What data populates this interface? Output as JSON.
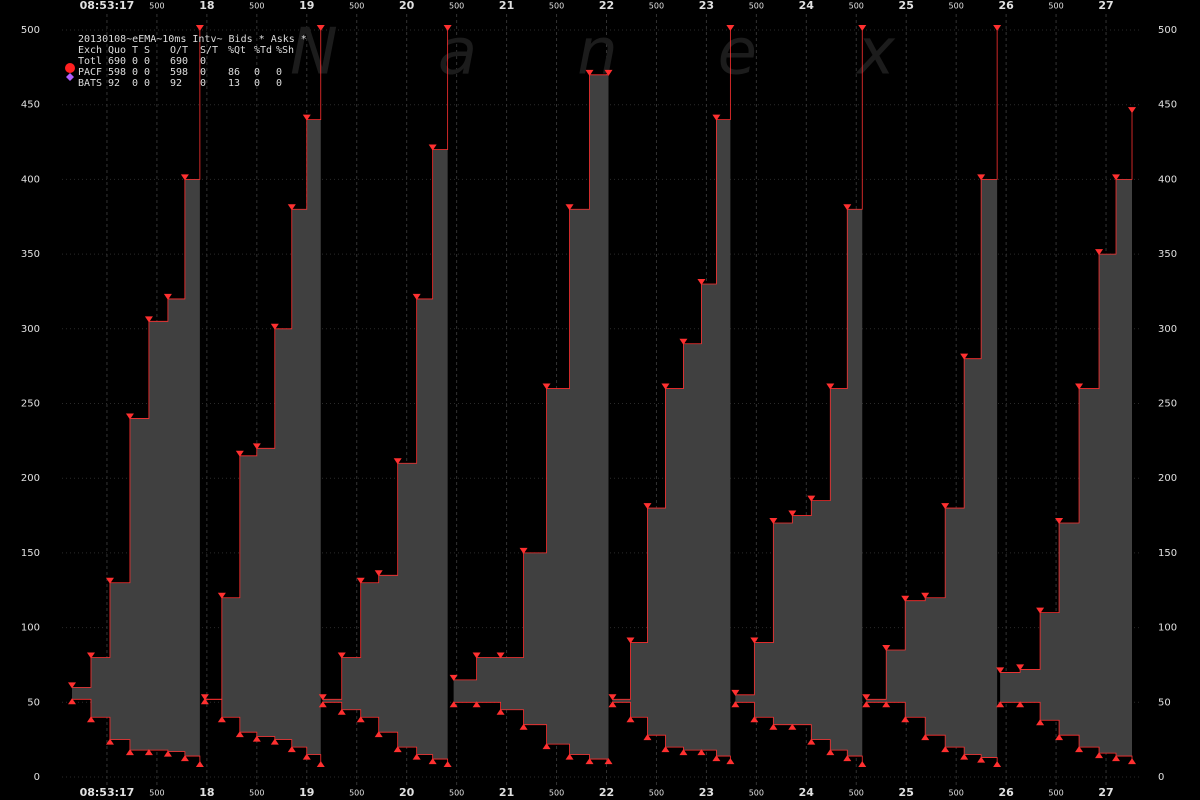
{
  "chart_data": {
    "type": "step-spread",
    "title": "20130108~eEMA~10ms Intv~",
    "watermark": "Nanex",
    "exchanges": {
      "header": [
        "Exch",
        "Quo",
        "T",
        "S",
        "O/T",
        "S/T",
        "%Qt",
        "%Td",
        "%Sh"
      ],
      "rows": [
        [
          "Totl",
          "690",
          "0",
          "0",
          "690",
          "0",
          "",
          "",
          ""
        ],
        [
          "PACF",
          "598",
          "0",
          "0",
          "598",
          "0",
          "86",
          "0",
          "0"
        ],
        [
          "BATS",
          "92",
          "0",
          "0",
          "92",
          "0",
          "13",
          "0",
          "0"
        ]
      ]
    },
    "xlim": [
      16.55,
      27.34
    ],
    "xticks": [
      {
        "value": 17,
        "label": "08:53:17"
      },
      {
        "value": 17.5,
        "label": "500"
      },
      18,
      {
        "value": 18.5,
        "label": "500"
      },
      19,
      {
        "value": 19.5,
        "label": "500"
      },
      20,
      {
        "value": 20.5,
        "label": "500"
      },
      21,
      {
        "value": 21.5,
        "label": "500"
      },
      22,
      {
        "value": 22.5,
        "label": "500"
      },
      23,
      {
        "value": 23.5,
        "label": "500"
      },
      24,
      {
        "value": 24.5,
        "label": "500"
      },
      25,
      {
        "value": 25.5,
        "label": "500"
      },
      26,
      {
        "value": 26.5,
        "label": "500"
      },
      27
    ],
    "ylim": [
      0,
      500
    ],
    "yticks": [
      0,
      50,
      100,
      150,
      200,
      250,
      300,
      350,
      400,
      450,
      500
    ],
    "grid": true,
    "area_color": "#404040",
    "x": [
      16.65,
      16.84,
      17.03,
      17.23,
      17.42,
      17.61,
      17.78,
      17.93,
      null,
      17.98,
      18.15,
      18.33,
      18.5,
      18.68,
      18.85,
      19.0,
      19.14,
      null,
      19.16,
      19.35,
      19.54,
      19.72,
      19.91,
      20.1,
      20.26,
      20.41,
      null,
      20.47,
      20.7,
      20.94,
      21.17,
      21.4,
      21.63,
      21.83,
      22.02,
      null,
      22.06,
      22.24,
      22.41,
      22.59,
      22.77,
      22.95,
      23.1,
      23.24,
      null,
      23.29,
      23.48,
      23.67,
      23.86,
      24.05,
      24.24,
      24.41,
      24.56,
      null,
      24.6,
      24.8,
      24.99,
      25.19,
      25.39,
      25.58,
      25.75,
      25.91,
      null,
      25.94,
      26.14,
      26.34,
      26.53,
      26.73,
      26.93,
      27.1,
      27.26
    ],
    "series": [
      {
        "name": "Bids *",
        "color": "#ff3030",
        "values": [
          52,
          40,
          25,
          18,
          18,
          17,
          14,
          10,
          null,
          52,
          40,
          30,
          27,
          25,
          20,
          15,
          10,
          null,
          50,
          45,
          40,
          30,
          20,
          15,
          12,
          10,
          null,
          50,
          50,
          45,
          35,
          22,
          15,
          12,
          12,
          null,
          50,
          40,
          28,
          20,
          18,
          18,
          14,
          12,
          null,
          50,
          40,
          35,
          35,
          25,
          18,
          14,
          10,
          null,
          50,
          50,
          40,
          28,
          20,
          15,
          13,
          10,
          null,
          50,
          50,
          38,
          28,
          20,
          16,
          14,
          12
        ]
      },
      {
        "name": "Asks *",
        "color": "#ff3030",
        "values": [
          60,
          80,
          130,
          240,
          305,
          320,
          400,
          500,
          null,
          52,
          120,
          215,
          220,
          300,
          380,
          440,
          500,
          null,
          52,
          80,
          130,
          135,
          210,
          320,
          420,
          500,
          null,
          65,
          80,
          80,
          150,
          260,
          380,
          470,
          470,
          null,
          52,
          90,
          180,
          260,
          290,
          330,
          440,
          500,
          null,
          55,
          90,
          170,
          175,
          185,
          260,
          380,
          500,
          null,
          52,
          85,
          118,
          120,
          180,
          280,
          400,
          500,
          null,
          70,
          72,
          110,
          170,
          260,
          350,
          400,
          445
        ]
      }
    ]
  }
}
